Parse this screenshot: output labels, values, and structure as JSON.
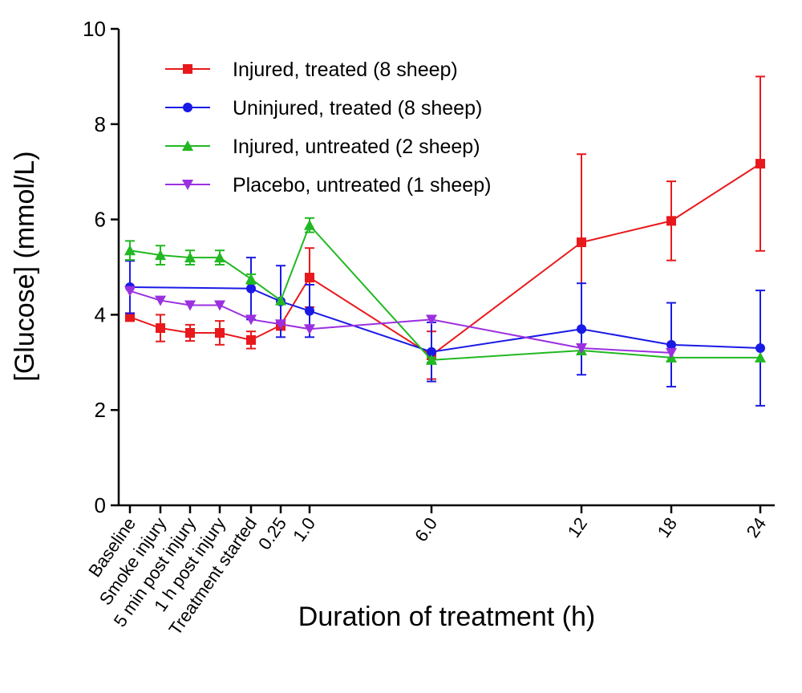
{
  "chart_data": {
    "type": "line",
    "title": "",
    "xlabel": "Duration of treatment (h)",
    "ylabel": "[Glucose] (mmol/L)",
    "ylim": [
      0,
      10
    ],
    "yticks": [
      "0",
      "2",
      "4",
      "6",
      "8",
      "10"
    ],
    "categories": [
      "Baseline",
      "Smoke injury",
      "5 min post injury",
      "1 h post injury",
      "Treatment started",
      "0.25",
      "1.0",
      "6.0",
      "12",
      "18",
      "24"
    ],
    "grid": false,
    "legend_position": "top-left",
    "series": [
      {
        "name": "Injured, treated (8 sheep)",
        "color": "#e8191c",
        "marker": "square",
        "values": [
          3.95,
          3.72,
          3.62,
          3.62,
          3.47,
          3.78,
          4.78,
          3.15,
          5.52,
          5.97,
          7.17
        ],
        "error": [
          0.0,
          0.28,
          0.17,
          0.25,
          0.18,
          0.1,
          0.62,
          0.5,
          1.85,
          0.83,
          1.83
        ]
      },
      {
        "name": "Uninjured, treated (8 sheep)",
        "color": "#1a1ae6",
        "marker": "circle",
        "values": [
          4.58,
          null,
          null,
          null,
          4.55,
          4.28,
          4.08,
          3.22,
          3.7,
          3.37,
          3.3
        ],
        "error": [
          0.55,
          null,
          null,
          null,
          0.65,
          0.75,
          0.55,
          0.62,
          0.96,
          0.88,
          1.21
        ]
      },
      {
        "name": "Injured, untreated (2 sheep)",
        "color": "#22b822",
        "marker": "triangle-up",
        "values": [
          5.35,
          5.25,
          5.2,
          5.2,
          4.75,
          4.3,
          5.88,
          3.05,
          3.25,
          3.1,
          3.1
        ],
        "error": [
          0.2,
          0.2,
          0.15,
          0.15,
          0.1,
          0.0,
          0.15,
          0.05,
          0.0,
          0.0,
          0.0
        ]
      },
      {
        "name": "Placebo, untreated (1 sheep)",
        "color": "#9b30e0",
        "marker": "triangle-down",
        "values": [
          4.5,
          4.3,
          4.2,
          4.2,
          3.9,
          3.8,
          3.7,
          3.9,
          3.3,
          3.2,
          null
        ],
        "error": null
      }
    ]
  }
}
